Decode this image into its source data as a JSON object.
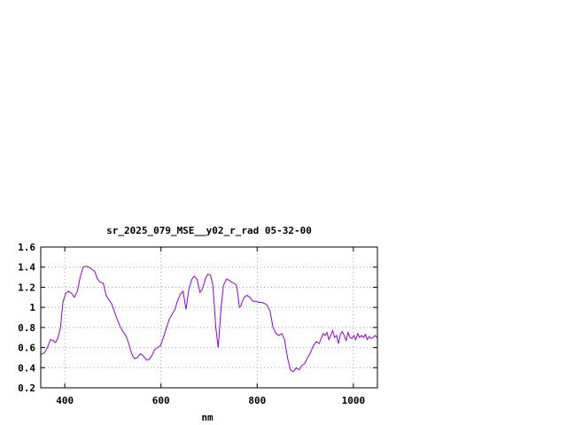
{
  "chart_data": {
    "type": "line",
    "title": "sr_2025_079_MSE__y02_r_rad 05-32-00",
    "xlabel": "nm",
    "ylabel": "",
    "xlim": [
      350,
      1050
    ],
    "ylim": [
      0.2,
      1.6
    ],
    "xticks": [
      400,
      600,
      800,
      1000
    ],
    "yticks": [
      0.2,
      0.4,
      0.6,
      0.8,
      1.0,
      1.2,
      1.4,
      1.6
    ],
    "ytick_labels": [
      "0.2",
      "0.4",
      "0.6",
      "0.8",
      "1",
      "1.2",
      "1.4",
      "1.6"
    ],
    "xtick_labels": [
      "400",
      "600",
      "800",
      "1000"
    ],
    "grid": true,
    "line_color": "#9400d3",
    "series": [
      {
        "x": [
          350,
          358,
          364,
          370,
          376,
          381,
          386,
          391,
          396,
          402,
          408,
          414,
          420,
          426,
          432,
          438,
          444,
          450,
          456,
          462,
          468,
          474,
          480,
          486,
          491,
          497,
          503,
          509,
          515,
          521,
          527,
          533,
          539,
          545,
          551,
          557,
          563,
          569,
          575,
          581,
          587,
          593,
          599,
          605,
          611,
          617,
          623,
          629,
          634,
          640,
          646,
          652,
          658,
          664,
          669,
          675,
          681,
          686,
          692,
          697,
          703,
          708,
          714,
          719,
          725,
          730,
          736,
          742,
          747,
          752,
          757,
          760,
          763,
          766,
          769,
          773,
          779,
          785,
          791,
          797,
          803,
          809,
          815,
          821,
          827,
          833,
          839,
          845,
          851,
          857,
          863,
          869,
          875,
          881,
          887,
          893,
          899,
          905,
          911,
          917,
          923,
          929,
          933,
          937,
          941,
          945,
          949,
          953,
          957,
          961,
          965,
          969,
          973,
          977,
          981,
          985,
          989,
          993,
          997,
          1001,
          1005,
          1009,
          1013,
          1017,
          1021,
          1025,
          1029,
          1033,
          1037,
          1041,
          1045,
          1050
        ],
        "y": [
          0.53,
          0.55,
          0.6,
          0.68,
          0.67,
          0.65,
          0.7,
          0.8,
          1.05,
          1.14,
          1.16,
          1.14,
          1.1,
          1.16,
          1.3,
          1.4,
          1.41,
          1.4,
          1.38,
          1.36,
          1.28,
          1.25,
          1.24,
          1.12,
          1.08,
          1.04,
          0.96,
          0.88,
          0.81,
          0.76,
          0.72,
          0.64,
          0.54,
          0.49,
          0.5,
          0.54,
          0.52,
          0.48,
          0.48,
          0.52,
          0.58,
          0.6,
          0.62,
          0.7,
          0.79,
          0.88,
          0.93,
          0.98,
          1.06,
          1.13,
          1.16,
          0.98,
          1.18,
          1.28,
          1.31,
          1.28,
          1.15,
          1.18,
          1.28,
          1.33,
          1.32,
          1.22,
          0.8,
          0.6,
          1.0,
          1.22,
          1.28,
          1.27,
          1.25,
          1.24,
          1.22,
          1.12,
          1.0,
          1.01,
          1.06,
          1.1,
          1.12,
          1.1,
          1.06,
          1.06,
          1.05,
          1.05,
          1.04,
          1.02,
          0.96,
          0.8,
          0.74,
          0.72,
          0.74,
          0.68,
          0.5,
          0.38,
          0.36,
          0.4,
          0.38,
          0.42,
          0.44,
          0.5,
          0.55,
          0.62,
          0.66,
          0.64,
          0.69,
          0.74,
          0.72,
          0.75,
          0.68,
          0.72,
          0.77,
          0.7,
          0.72,
          0.64,
          0.73,
          0.76,
          0.72,
          0.67,
          0.75,
          0.7,
          0.69,
          0.72,
          0.68,
          0.74,
          0.7,
          0.72,
          0.7,
          0.73,
          0.68,
          0.71,
          0.69,
          0.7,
          0.72,
          0.7
        ]
      }
    ]
  }
}
